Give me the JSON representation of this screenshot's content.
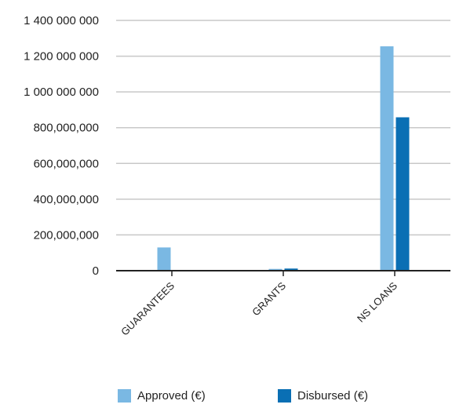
{
  "chart_data": {
    "type": "bar",
    "categories": [
      "GUARANTEES",
      "GRANTS",
      "NS LOANS"
    ],
    "series": [
      {
        "name": "Approved (€)",
        "color": "#7ab8e3",
        "values": [
          130000000,
          10000000,
          1255000000
        ]
      },
      {
        "name": "Disbursed (€)",
        "color": "#0a6fb4",
        "values": [
          0,
          12000000,
          858000000
        ]
      }
    ],
    "ylim": [
      0,
      1400000000
    ],
    "yticks": [
      {
        "value": 0,
        "label": "0"
      },
      {
        "value": 200000000,
        "label": "200,000,000"
      },
      {
        "value": 400000000,
        "label": "400,000,000"
      },
      {
        "value": 600000000,
        "label": "600,000,000"
      },
      {
        "value": 800000000,
        "label": "800,000,000"
      },
      {
        "value": 1000000000,
        "label": "1 000 000 000"
      },
      {
        "value": 1200000000,
        "label": "1 200 000 000"
      },
      {
        "value": 1400000000,
        "label": "1 400 000 000"
      }
    ],
    "grid": true,
    "legend_position": "bottom-center",
    "title": "",
    "xlabel": "",
    "ylabel": ""
  }
}
